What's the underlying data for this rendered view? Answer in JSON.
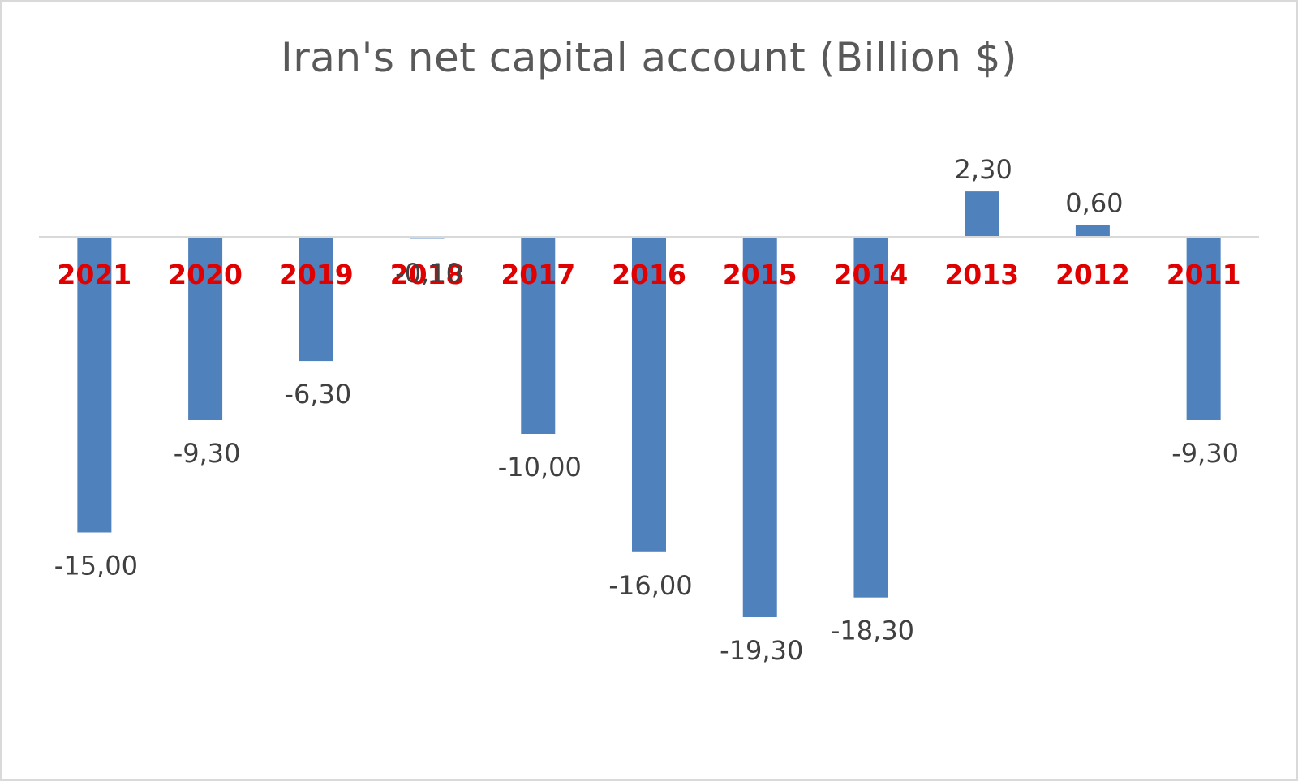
{
  "chart_data": {
    "type": "bar",
    "title": "Iran's net capital account (Billion $)",
    "xlabel": "",
    "ylabel": "",
    "categories": [
      "2021",
      "2020",
      "2019",
      "2018",
      "2017",
      "2016",
      "2015",
      "2014",
      "2013",
      "2012",
      "2011"
    ],
    "values": [
      -15.0,
      -9.3,
      -6.3,
      -0.1,
      -10.0,
      -16.0,
      -19.3,
      -18.3,
      2.3,
      0.6,
      -9.3
    ],
    "data_labels": [
      "-15,00",
      "-9,30",
      "-6,30",
      "-0,10",
      "-10,00",
      "-16,00",
      "-19,30",
      "-18,30",
      "2,30",
      "0,60",
      "-9,30"
    ],
    "ylim": [
      -20.9,
      4.2
    ],
    "grid": false,
    "legend": "none",
    "colors": {
      "bar": "#4f81bd",
      "category_label": "#e00000",
      "data_label": "#404040",
      "title": "#595959",
      "axis_line": "#d9d9d9"
    }
  }
}
